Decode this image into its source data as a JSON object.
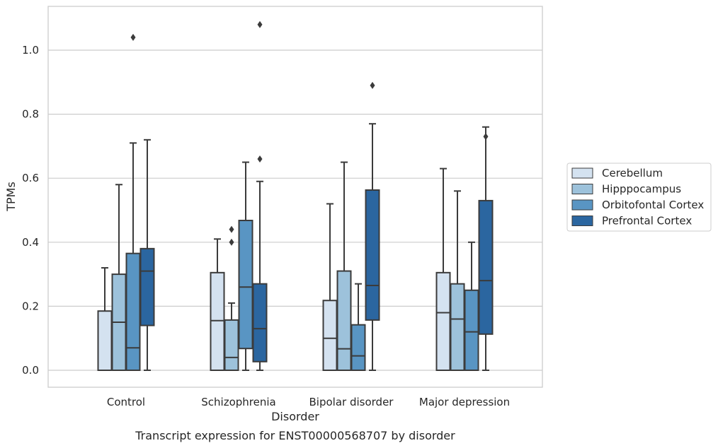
{
  "chart_data": {
    "type": "box",
    "xlabel": "Disorder",
    "ylabel": "TPMs",
    "caption": "Transcript expression for ENST00000568707 by disorder",
    "ylim": [
      -0.05,
      1.14
    ],
    "yticks": [
      "0.0",
      "0.2",
      "0.4",
      "0.6",
      "0.8",
      "1.0"
    ],
    "grid": "horizontal",
    "legend_position": "right",
    "categories": [
      "Control",
      "Schizophrenia",
      "Bipolar disorder",
      "Major depression"
    ],
    "series": [
      {
        "name": "Cerebellum",
        "color": "#d4e2f0",
        "boxes": [
          {
            "whislo": 0.0,
            "q1": 0.0,
            "med": 0.0,
            "q3": 0.185,
            "whishi": 0.32,
            "fliers": []
          },
          {
            "whislo": 0.0,
            "q1": 0.0,
            "med": 0.155,
            "q3": 0.305,
            "whishi": 0.41,
            "fliers": []
          },
          {
            "whislo": 0.0,
            "q1": 0.0,
            "med": 0.1,
            "q3": 0.218,
            "whishi": 0.52,
            "fliers": []
          },
          {
            "whislo": 0.0,
            "q1": 0.0,
            "med": 0.18,
            "q3": 0.305,
            "whishi": 0.63,
            "fliers": []
          }
        ]
      },
      {
        "name": "Hipppocampus",
        "color": "#9dc2db",
        "boxes": [
          {
            "whislo": 0.0,
            "q1": 0.0,
            "med": 0.15,
            "q3": 0.3,
            "whishi": 0.58,
            "fliers": []
          },
          {
            "whislo": 0.0,
            "q1": 0.0,
            "med": 0.04,
            "q3": 0.157,
            "whishi": 0.21,
            "fliers": [
              0.4,
              0.44
            ]
          },
          {
            "whislo": 0.0,
            "q1": 0.0,
            "med": 0.067,
            "q3": 0.31,
            "whishi": 0.65,
            "fliers": []
          },
          {
            "whislo": 0.0,
            "q1": 0.0,
            "med": 0.16,
            "q3": 0.27,
            "whishi": 0.56,
            "fliers": []
          }
        ]
      },
      {
        "name": "Orbitofontal Cortex",
        "color": "#5995c3",
        "boxes": [
          {
            "whislo": 0.0,
            "q1": 0.0,
            "med": 0.07,
            "q3": 0.365,
            "whishi": 0.71,
            "fliers": [
              1.04
            ]
          },
          {
            "whislo": 0.0,
            "q1": 0.068,
            "med": 0.26,
            "q3": 0.468,
            "whishi": 0.65,
            "fliers": []
          },
          {
            "whislo": 0.0,
            "q1": 0.0,
            "med": 0.045,
            "q3": 0.142,
            "whishi": 0.27,
            "fliers": []
          },
          {
            "whislo": 0.0,
            "q1": 0.0,
            "med": 0.12,
            "q3": 0.25,
            "whishi": 0.4,
            "fliers": []
          }
        ]
      },
      {
        "name": "Prefrontal Cortex",
        "color": "#2b66a0",
        "boxes": [
          {
            "whislo": 0.0,
            "q1": 0.14,
            "med": 0.31,
            "q3": 0.38,
            "whishi": 0.72,
            "fliers": []
          },
          {
            "whislo": 0.0,
            "q1": 0.027,
            "med": 0.13,
            "q3": 0.27,
            "whishi": 0.59,
            "fliers": [
              0.66,
              1.08
            ]
          },
          {
            "whislo": 0.0,
            "q1": 0.157,
            "med": 0.265,
            "q3": 0.563,
            "whishi": 0.77,
            "fliers": [
              0.89
            ]
          },
          {
            "whislo": 0.0,
            "q1": 0.113,
            "med": 0.28,
            "q3": 0.53,
            "whishi": 0.76,
            "fliers": [
              0.73
            ]
          }
        ]
      }
    ]
  }
}
